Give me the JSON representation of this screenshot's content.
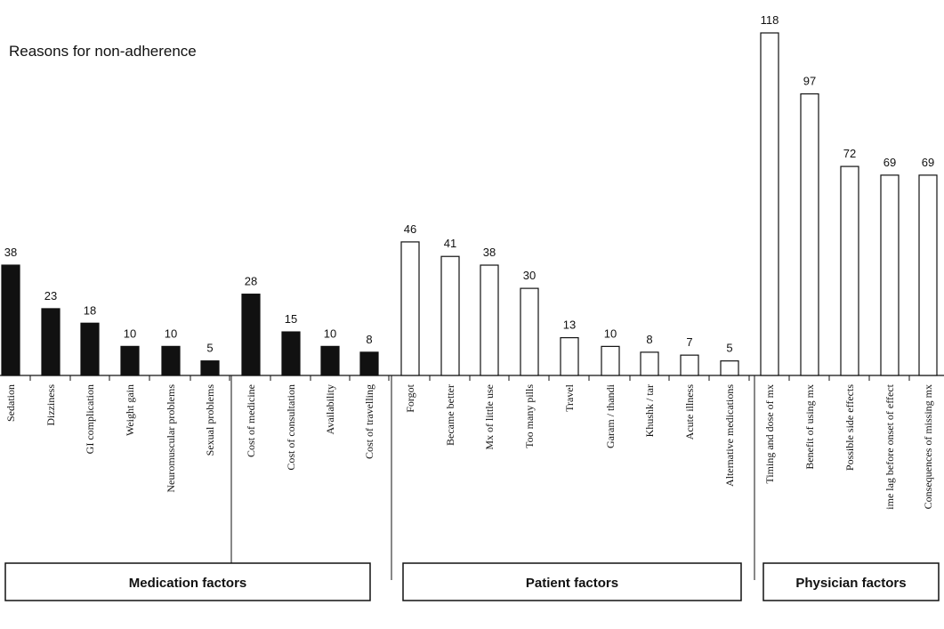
{
  "chart_data": {
    "type": "bar",
    "title": "Reasons for non-adherence",
    "xlabel": "",
    "ylabel": "",
    "ylim": [
      0,
      118
    ],
    "grid": false,
    "legend": "none",
    "groups": [
      {
        "name": "Medication factors",
        "bar_style": "filled",
        "color": "#111111",
        "categories": [
          "Sedation",
          "Dizziness",
          "GI complication",
          "Weight gain",
          "Neuromuscular problems",
          "Sexual problems",
          "Cost of medicine",
          "Cost of consultation",
          "Availability",
          "Cost of travelling"
        ],
        "values": [
          38,
          23,
          18,
          10,
          10,
          5,
          28,
          15,
          10,
          8
        ]
      },
      {
        "name": "Patient factors",
        "bar_style": "outline",
        "color": "#111111",
        "categories": [
          "Forgot",
          "Became better",
          "Mx of little use",
          "Too many pills",
          "Travel",
          "Garam / thandi",
          "Khushk / tar",
          "Acute illness",
          "Alternative medications"
        ],
        "values": [
          46,
          41,
          38,
          30,
          13,
          10,
          8,
          7,
          5
        ]
      },
      {
        "name": "Physician factors",
        "bar_style": "outline",
        "color": "#111111",
        "categories": [
          "Timing and dose of mx",
          "Benefit of using mx",
          "Possible side effects",
          "ime lag before onset of effect",
          "Consequences of missing mx"
        ],
        "values": [
          118,
          97,
          72,
          69,
          69
        ]
      }
    ]
  }
}
